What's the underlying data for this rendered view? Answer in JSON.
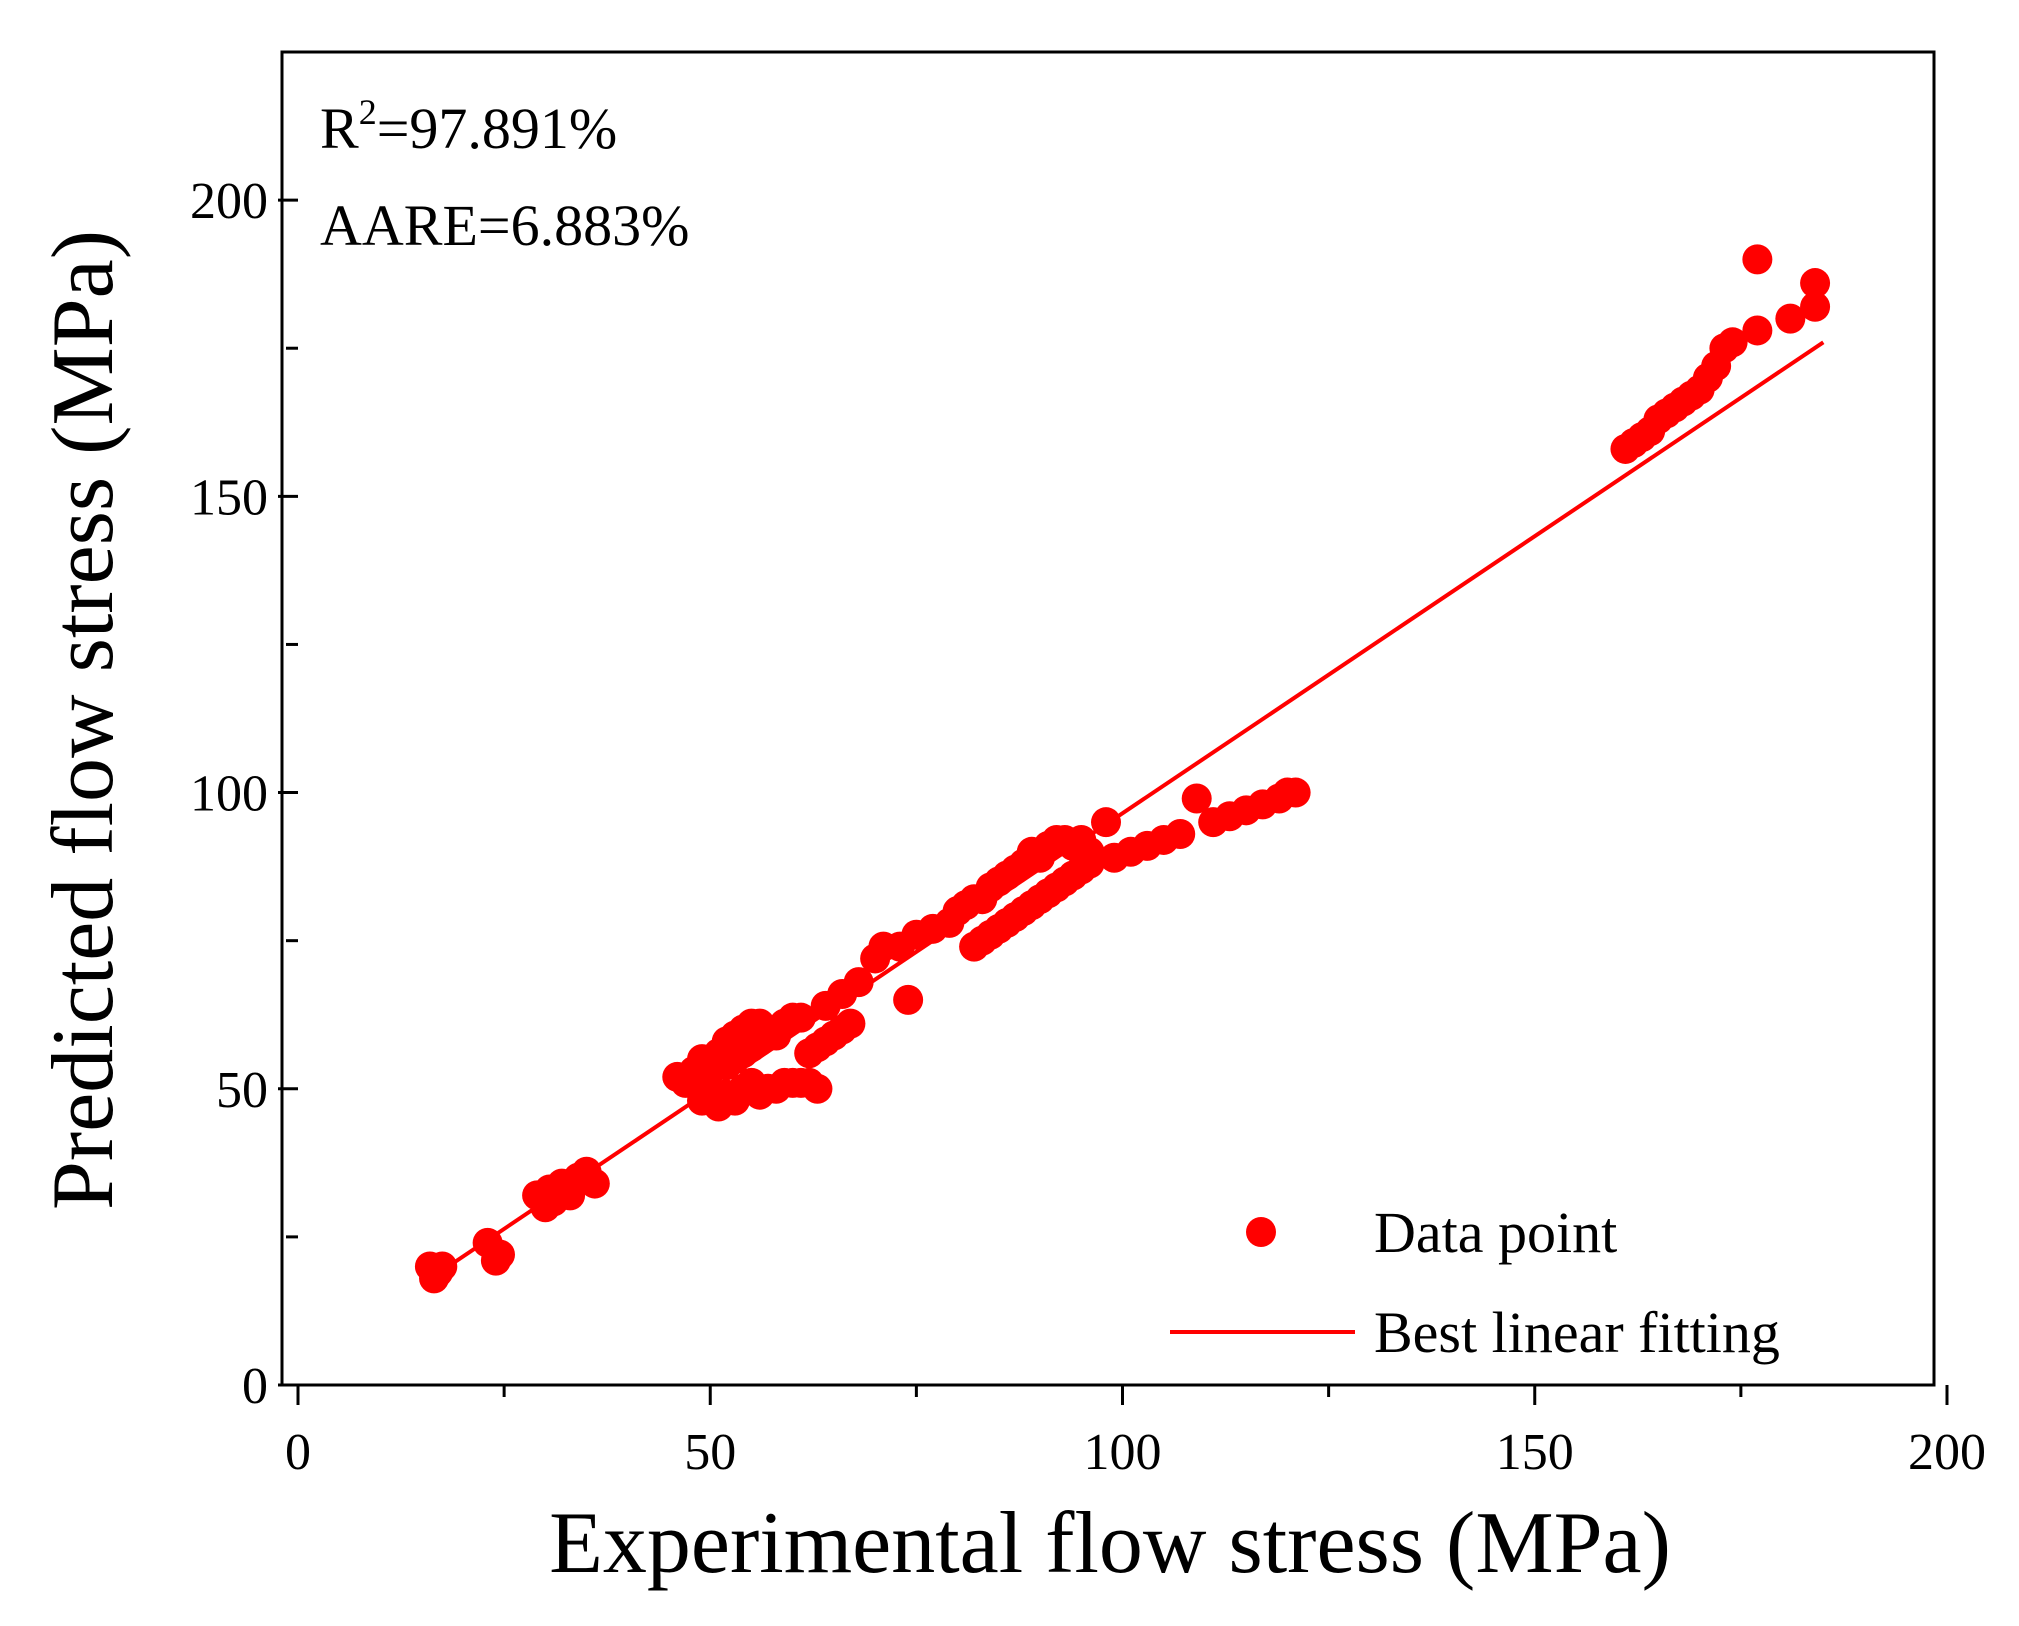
{
  "chart_data": {
    "type": "scatter",
    "xlabel": "Experimental flow stress (MPa)",
    "ylabel": "Predicted flow stress (MPa)",
    "xlim": [
      0,
      200
    ],
    "ylim": [
      0,
      225
    ],
    "x_ticks": [
      0,
      50,
      100,
      150,
      200
    ],
    "y_ticks": [
      0,
      50,
      100,
      150,
      200
    ],
    "annotations": {
      "r2_label": "R",
      "r2_sup": "2",
      "r2_value": "=97.891%",
      "aare": "AARE=6.883%"
    },
    "legend": {
      "position": "bottom-right",
      "items": [
        {
          "label": "Data point",
          "kind": "marker"
        },
        {
          "label": "Best linear fitting",
          "kind": "line"
        }
      ]
    },
    "colors": {
      "points": "#ff0000",
      "fit": "#ff0000"
    },
    "fit_line": {
      "x": [
        15,
        185
      ],
      "y": [
        17,
        176
      ]
    },
    "series": [
      {
        "name": "Data point",
        "points": [
          [
            16,
            20
          ],
          [
            16.5,
            18
          ],
          [
            17,
            19
          ],
          [
            17.5,
            20
          ],
          [
            23,
            24
          ],
          [
            24,
            21
          ],
          [
            24.5,
            22
          ],
          [
            29,
            32
          ],
          [
            30,
            30
          ],
          [
            30.5,
            33
          ],
          [
            31,
            31
          ],
          [
            32,
            34
          ],
          [
            33,
            32
          ],
          [
            34,
            35
          ],
          [
            35,
            36
          ],
          [
            36,
            34
          ],
          [
            46,
            52
          ],
          [
            47,
            51
          ],
          [
            48,
            53
          ],
          [
            49,
            55
          ],
          [
            50,
            53
          ],
          [
            51,
            56
          ],
          [
            52,
            58
          ],
          [
            53,
            59
          ],
          [
            54,
            60
          ],
          [
            55,
            61
          ],
          [
            56,
            61
          ],
          [
            57,
            60
          ],
          [
            49,
            48
          ],
          [
            50,
            49
          ],
          [
            51,
            47
          ],
          [
            52,
            49
          ],
          [
            53,
            48
          ],
          [
            54,
            50
          ],
          [
            55,
            51
          ],
          [
            56,
            49
          ],
          [
            57,
            50
          ],
          [
            58,
            50
          ],
          [
            59,
            51
          ],
          [
            60,
            51
          ],
          [
            61,
            51
          ],
          [
            62,
            51
          ],
          [
            63,
            50
          ],
          [
            52,
            54
          ],
          [
            53,
            55
          ],
          [
            54,
            56
          ],
          [
            55,
            57
          ],
          [
            56,
            58
          ],
          [
            57,
            59
          ],
          [
            58,
            59
          ],
          [
            59,
            61
          ],
          [
            60,
            62
          ],
          [
            61,
            62
          ],
          [
            62,
            56
          ],
          [
            63,
            57
          ],
          [
            64,
            58
          ],
          [
            65,
            59
          ],
          [
            66,
            60
          ],
          [
            67,
            61
          ],
          [
            64,
            64
          ],
          [
            66,
            66
          ],
          [
            68,
            68
          ],
          [
            70,
            72
          ],
          [
            71,
            74
          ],
          [
            73,
            74
          ],
          [
            74,
            65
          ],
          [
            75,
            76
          ],
          [
            77,
            77
          ],
          [
            79,
            78
          ],
          [
            80,
            80
          ],
          [
            81,
            81
          ],
          [
            82,
            82
          ],
          [
            83,
            82
          ],
          [
            84,
            84
          ],
          [
            85,
            85
          ],
          [
            86,
            86
          ],
          [
            87,
            87
          ],
          [
            88,
            88
          ],
          [
            89,
            90
          ],
          [
            90,
            89
          ],
          [
            91,
            91
          ],
          [
            92,
            92
          ],
          [
            93,
            92
          ],
          [
            94,
            91
          ],
          [
            95,
            92
          ],
          [
            96,
            90
          ],
          [
            98,
            95
          ],
          [
            82,
            74
          ],
          [
            83,
            75
          ],
          [
            84,
            76
          ],
          [
            85,
            77
          ],
          [
            86,
            78
          ],
          [
            87,
            79
          ],
          [
            88,
            80
          ],
          [
            89,
            81
          ],
          [
            90,
            82
          ],
          [
            91,
            83
          ],
          [
            92,
            84
          ],
          [
            93,
            85
          ],
          [
            94,
            86
          ],
          [
            95,
            87
          ],
          [
            96,
            88
          ],
          [
            99,
            89
          ],
          [
            101,
            90
          ],
          [
            103,
            91
          ],
          [
            105,
            92
          ],
          [
            107,
            93
          ],
          [
            109,
            99
          ],
          [
            111,
            95
          ],
          [
            113,
            96
          ],
          [
            115,
            97
          ],
          [
            117,
            98
          ],
          [
            119,
            99
          ],
          [
            120,
            100
          ],
          [
            121,
            100
          ],
          [
            161,
            158
          ],
          [
            162,
            159
          ],
          [
            163,
            160
          ],
          [
            164,
            161
          ],
          [
            165,
            163
          ],
          [
            166,
            164
          ],
          [
            167,
            165
          ],
          [
            168,
            166
          ],
          [
            169,
            167
          ],
          [
            170,
            168
          ],
          [
            171,
            170
          ],
          [
            172,
            172
          ],
          [
            173,
            175
          ],
          [
            174,
            176
          ],
          [
            177,
            178
          ],
          [
            177,
            190
          ],
          [
            181,
            180
          ],
          [
            184,
            182
          ],
          [
            184,
            186
          ]
        ]
      }
    ]
  }
}
